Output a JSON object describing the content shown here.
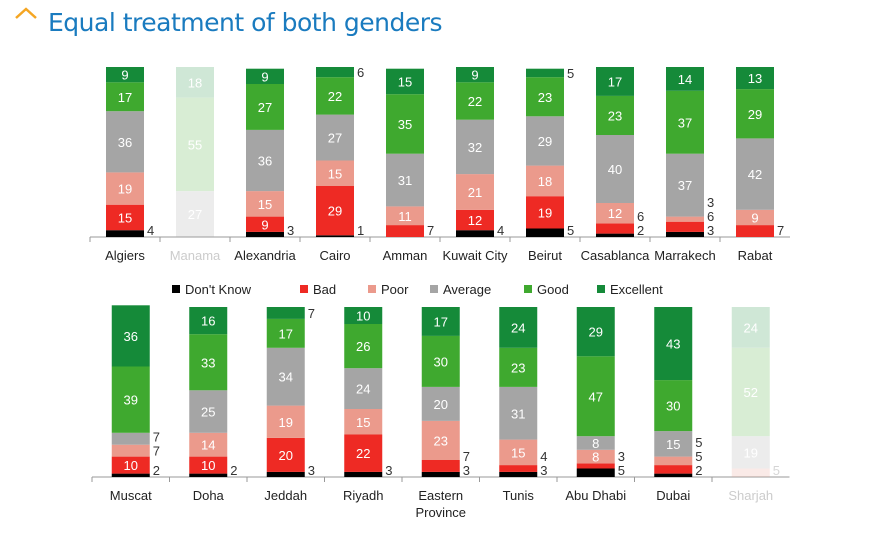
{
  "title": "Equal treatment of both genders",
  "colors": {
    "Don't Know": "#000000",
    "Bad": "#ee2a24",
    "Poor": "#eb9a8c",
    "Average": "#a5a5a5",
    "Good": "#3fa92f",
    "Excellent": "#158a39",
    "title": "#1a7bbf",
    "accent": "#f5a623"
  },
  "legend": [
    "Don't Know",
    "Bad",
    "Poor",
    "Average",
    "Good",
    "Excellent"
  ],
  "chart_data": [
    {
      "type": "bar",
      "stacked": true,
      "ylim": [
        0,
        100
      ],
      "categories": [
        "Algiers",
        "Manama",
        "Alexandria",
        "Cairo",
        "Amman",
        "Kuwait City",
        "Beirut",
        "Casablanca",
        "Marrakech",
        "Rabat"
      ],
      "faded": [
        "Manama"
      ],
      "series": [
        {
          "name": "Don't Know",
          "values": [
            4,
            0,
            3,
            1,
            0,
            4,
            5,
            2,
            3,
            0
          ]
        },
        {
          "name": "Bad",
          "values": [
            15,
            0,
            9,
            29,
            7,
            12,
            19,
            6,
            6,
            7
          ]
        },
        {
          "name": "Poor",
          "values": [
            19,
            0,
            15,
            15,
            11,
            21,
            18,
            12,
            3,
            9
          ]
        },
        {
          "name": "Average",
          "values": [
            36,
            27,
            36,
            27,
            31,
            32,
            29,
            40,
            37,
            42
          ]
        },
        {
          "name": "Good",
          "values": [
            17,
            55,
            27,
            22,
            35,
            22,
            23,
            23,
            37,
            29
          ]
        },
        {
          "name": "Excellent",
          "values": [
            9,
            18,
            9,
            6,
            15,
            9,
            5,
            17,
            14,
            13
          ]
        }
      ]
    },
    {
      "type": "bar",
      "stacked": true,
      "ylim": [
        0,
        100
      ],
      "categories": [
        "Muscat",
        "Doha",
        "Jeddah",
        "Riyadh",
        "Eastern Province",
        "Tunis",
        "Abu Dhabi",
        "Dubai",
        "Sharjah"
      ],
      "faded": [
        "Sharjah"
      ],
      "series": [
        {
          "name": "Don't Know",
          "values": [
            2,
            2,
            3,
            3,
            3,
            3,
            5,
            2,
            0
          ]
        },
        {
          "name": "Bad",
          "values": [
            10,
            10,
            20,
            22,
            7,
            4,
            3,
            5,
            0
          ]
        },
        {
          "name": "Poor",
          "values": [
            7,
            14,
            19,
            15,
            23,
            15,
            8,
            5,
            5
          ]
        },
        {
          "name": "Average",
          "values": [
            7,
            25,
            34,
            24,
            20,
            31,
            8,
            15,
            19
          ]
        },
        {
          "name": "Good",
          "values": [
            39,
            33,
            17,
            26,
            30,
            23,
            47,
            30,
            52
          ]
        },
        {
          "name": "Excellent",
          "values": [
            36,
            16,
            7,
            10,
            17,
            24,
            29,
            43,
            24
          ]
        }
      ]
    }
  ]
}
